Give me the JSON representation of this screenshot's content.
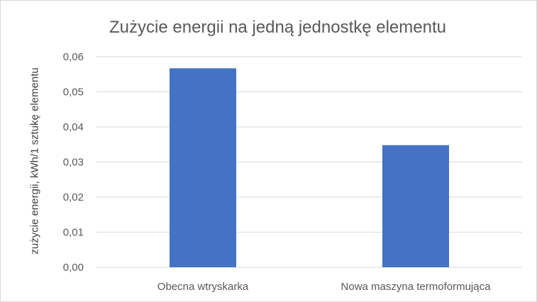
{
  "chart_data": {
    "type": "bar",
    "title": "Zużycie energii na jedną jednostkę elementu",
    "xlabel": "",
    "ylabel": "zużycie energii, kWh/1 sztukę elementu",
    "categories": [
      "Obecna wtryskarka",
      "Nowa maszyna termoformująca"
    ],
    "values": [
      0.0567,
      0.0348
    ],
    "ylim": [
      0,
      0.06
    ],
    "yticks": [
      "0,00",
      "0,01",
      "0,02",
      "0,03",
      "0,04",
      "0,05",
      "0,06"
    ],
    "grid": true,
    "legend": "none",
    "colors": {
      "bar": "#4472c4",
      "grid": "#d9d9d9",
      "text": "#595959"
    }
  }
}
